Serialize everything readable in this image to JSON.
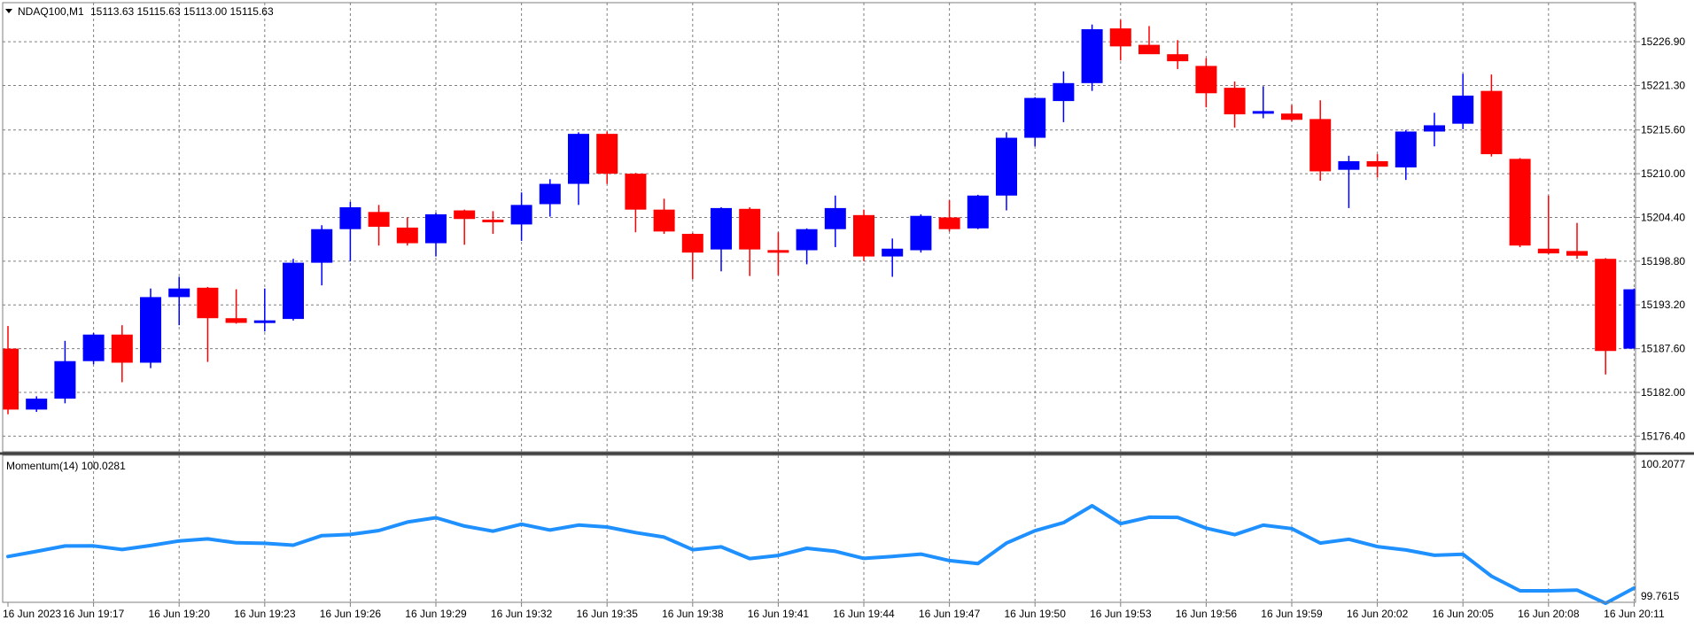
{
  "main_label": "NDAQ100,M1",
  "main_ohlc": "15113.63 15115.63 15113.00 15115.63",
  "indicator_label": "Momentum(14) 100.0281",
  "colors": {
    "bull": "#0000FF",
    "bear": "#FF0000",
    "momentum": "#1E90FF",
    "grid": "#7F7F7F",
    "frame": "#7F7F7F",
    "text": "#000000"
  },
  "chart_data": [
    {
      "type": "candlestick",
      "title": "NDAQ100,M1",
      "price_ticks": [
        "15226.90",
        "15221.30",
        "15215.60",
        "15210.00",
        "15204.40",
        "15198.80",
        "15193.20",
        "15187.60",
        "15182.00",
        "15176.40"
      ],
      "ylim": [
        15174.4,
        15231.9
      ],
      "grid": true,
      "x_labels": [
        "16 Jun 2023",
        "16 Jun 19:17",
        "16 Jun 19:20",
        "16 Jun 19:23",
        "16 Jun 19:26",
        "16 Jun 19:29",
        "16 Jun 19:32",
        "16 Jun 19:35",
        "16 Jun 19:38",
        "16 Jun 19:41",
        "16 Jun 19:44",
        "16 Jun 19:47",
        "16 Jun 19:50",
        "16 Jun 19:53",
        "16 Jun 19:56",
        "16 Jun 19:59",
        "16 Jun 20:02",
        "16 Jun 20:05",
        "16 Jun 20:08",
        "16 Jun 20:11"
      ],
      "candles": [
        {
          "o": 15187.6,
          "h": 15190.5,
          "l": 15179.2,
          "c": 15179.8
        },
        {
          "o": 15179.8,
          "h": 15181.5,
          "l": 15179.5,
          "c": 15181.2
        },
        {
          "o": 15181.2,
          "h": 15188.6,
          "l": 15180.6,
          "c": 15186.0
        },
        {
          "o": 15186.0,
          "h": 15189.6,
          "l": 15185.6,
          "c": 15189.4
        },
        {
          "o": 15189.4,
          "h": 15190.6,
          "l": 15183.3,
          "c": 15185.8
        },
        {
          "o": 15185.8,
          "h": 15195.3,
          "l": 15185.1,
          "c": 15194.2
        },
        {
          "o": 15194.2,
          "h": 15196.8,
          "l": 15190.6,
          "c": 15195.3
        },
        {
          "o": 15195.4,
          "h": 15195.5,
          "l": 15185.9,
          "c": 15191.5
        },
        {
          "o": 15191.5,
          "h": 15195.2,
          "l": 15190.8,
          "c": 15190.9
        },
        {
          "o": 15190.9,
          "h": 15195.3,
          "l": 15189.8,
          "c": 15191.2
        },
        {
          "o": 15191.4,
          "h": 15199.1,
          "l": 15191.2,
          "c": 15198.6
        },
        {
          "o": 15198.6,
          "h": 15203.4,
          "l": 15195.7,
          "c": 15202.9
        },
        {
          "o": 15202.9,
          "h": 15206.4,
          "l": 15198.8,
          "c": 15205.7
        },
        {
          "o": 15205.1,
          "h": 15206.0,
          "l": 15200.8,
          "c": 15203.2
        },
        {
          "o": 15203.1,
          "h": 15204.4,
          "l": 15200.8,
          "c": 15201.1
        },
        {
          "o": 15201.1,
          "h": 15205.0,
          "l": 15199.4,
          "c": 15204.8
        },
        {
          "o": 15205.3,
          "h": 15205.4,
          "l": 15200.9,
          "c": 15204.2
        },
        {
          "o": 15204.1,
          "h": 15205.2,
          "l": 15202.3,
          "c": 15203.8
        },
        {
          "o": 15203.5,
          "h": 15207.6,
          "l": 15201.4,
          "c": 15206.0
        },
        {
          "o": 15206.1,
          "h": 15209.3,
          "l": 15204.5,
          "c": 15208.7
        },
        {
          "o": 15208.7,
          "h": 15215.3,
          "l": 15206.0,
          "c": 15215.1
        },
        {
          "o": 15215.1,
          "h": 15215.4,
          "l": 15208.7,
          "c": 15210.0
        },
        {
          "o": 15210.0,
          "h": 15210.1,
          "l": 15202.5,
          "c": 15205.4
        },
        {
          "o": 15205.4,
          "h": 15206.8,
          "l": 15202.3,
          "c": 15202.6
        },
        {
          "o": 15202.3,
          "h": 15202.4,
          "l": 15196.5,
          "c": 15199.9
        },
        {
          "o": 15200.3,
          "h": 15205.7,
          "l": 15197.5,
          "c": 15205.6
        },
        {
          "o": 15205.5,
          "h": 15205.7,
          "l": 15196.9,
          "c": 15200.3
        },
        {
          "o": 15200.2,
          "h": 15202.5,
          "l": 15197.0,
          "c": 15199.9
        },
        {
          "o": 15200.2,
          "h": 15203.0,
          "l": 15198.4,
          "c": 15202.9
        },
        {
          "o": 15202.9,
          "h": 15207.2,
          "l": 15200.6,
          "c": 15205.6
        },
        {
          "o": 15204.7,
          "h": 15205.4,
          "l": 15198.8,
          "c": 15199.4
        },
        {
          "o": 15199.4,
          "h": 15201.7,
          "l": 15196.8,
          "c": 15200.4
        },
        {
          "o": 15200.2,
          "h": 15204.8,
          "l": 15199.9,
          "c": 15204.6
        },
        {
          "o": 15204.4,
          "h": 15206.6,
          "l": 15202.6,
          "c": 15202.9
        },
        {
          "o": 15203.0,
          "h": 15207.3,
          "l": 15202.9,
          "c": 15207.2
        },
        {
          "o": 15207.2,
          "h": 15215.3,
          "l": 15205.3,
          "c": 15214.6
        },
        {
          "o": 15214.6,
          "h": 15219.8,
          "l": 15213.5,
          "c": 15219.7
        },
        {
          "o": 15219.3,
          "h": 15223.1,
          "l": 15216.6,
          "c": 15221.6
        },
        {
          "o": 15221.6,
          "h": 15229.1,
          "l": 15220.6,
          "c": 15228.5
        },
        {
          "o": 15228.6,
          "h": 15229.7,
          "l": 15224.5,
          "c": 15226.3
        },
        {
          "o": 15226.5,
          "h": 15228.9,
          "l": 15225.5,
          "c": 15225.3
        },
        {
          "o": 15225.3,
          "h": 15227.1,
          "l": 15223.4,
          "c": 15224.4
        },
        {
          "o": 15223.8,
          "h": 15224.8,
          "l": 15218.5,
          "c": 15220.3
        },
        {
          "o": 15221.0,
          "h": 15221.8,
          "l": 15215.9,
          "c": 15217.6
        },
        {
          "o": 15217.7,
          "h": 15221.2,
          "l": 15217.1,
          "c": 15218.0
        },
        {
          "o": 15217.7,
          "h": 15218.8,
          "l": 15216.7,
          "c": 15216.9
        },
        {
          "o": 15217.0,
          "h": 15219.4,
          "l": 15209.1,
          "c": 15210.3
        },
        {
          "o": 15210.5,
          "h": 15212.3,
          "l": 15205.6,
          "c": 15211.6
        },
        {
          "o": 15211.6,
          "h": 15212.5,
          "l": 15209.5,
          "c": 15210.9
        },
        {
          "o": 15210.8,
          "h": 15215.6,
          "l": 15209.2,
          "c": 15215.4
        },
        {
          "o": 15215.4,
          "h": 15217.8,
          "l": 15213.5,
          "c": 15216.2
        },
        {
          "o": 15216.4,
          "h": 15222.8,
          "l": 15215.7,
          "c": 15220.0
        },
        {
          "o": 15220.6,
          "h": 15222.7,
          "l": 15212.2,
          "c": 15212.5
        },
        {
          "o": 15211.9,
          "h": 15212.0,
          "l": 15200.6,
          "c": 15200.8
        },
        {
          "o": 15200.4,
          "h": 15207.2,
          "l": 15199.7,
          "c": 15199.8
        },
        {
          "o": 15200.1,
          "h": 15203.7,
          "l": 15199.1,
          "c": 15199.5
        },
        {
          "o": 15199.1,
          "h": 15199.2,
          "l": 15184.3,
          "c": 15187.3
        },
        {
          "o": 15187.6,
          "h": 15195.3,
          "l": 15187.6,
          "c": 15195.2
        }
      ]
    },
    {
      "type": "line",
      "title": "Momentum(14) 100.0281",
      "series": [
        {
          "name": "Momentum(14)",
          "values": [
            99.8954,
            99.9127,
            99.931,
            99.9314,
            99.919,
            99.9324,
            99.948,
            99.9549,
            99.9419,
            99.94,
            99.9336,
            99.9659,
            99.97,
            99.983,
            100.0118,
            100.0265,
            99.9983,
            99.9809,
            100.0048,
            99.985,
            100.0018,
            99.9952,
            99.9762,
            99.961,
            99.9185,
            99.9279,
            99.8885,
            99.8989,
            99.9233,
            99.9129,
            99.8892,
            99.8957,
            99.9034,
            99.8817,
            99.8713,
            99.9409,
            99.9826,
            100.0098,
            100.0671,
            100.0066,
            100.0284,
            100.0278,
            99.9913,
            99.9693,
            100.0014,
            99.9896,
            99.9408,
            99.9538,
            99.9289,
            99.9175,
            99.8997,
            99.9031,
            99.8289,
            99.7795,
            99.7795,
            99.782,
            99.7371,
            99.7887
          ]
        }
      ],
      "y_ticks": [
        "100.2077",
        "99.7615"
      ],
      "ylim": [
        99.7615,
        100.2077
      ],
      "grid": true
    }
  ]
}
